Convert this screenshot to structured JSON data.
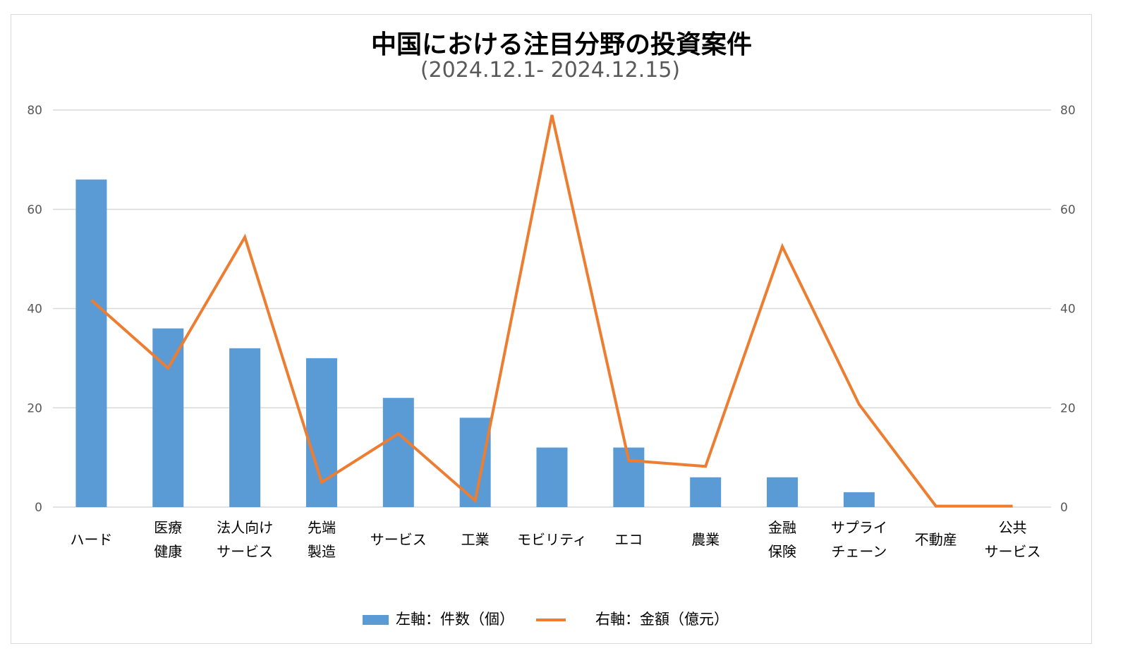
{
  "chart_data": {
    "type": "bar",
    "title": "中国における注目分野の投資案件",
    "subtitle": "(2024.12.1- 2024.12.15)",
    "categories": [
      [
        "ハード"
      ],
      [
        "医療",
        "健康"
      ],
      [
        "法人向け",
        "サービス"
      ],
      [
        "先端",
        "製造"
      ],
      [
        "サービス"
      ],
      [
        "工業"
      ],
      [
        "モビリティ"
      ],
      [
        "エコ"
      ],
      [
        "農業"
      ],
      [
        "金融",
        "保険"
      ],
      [
        "サプライ",
        "チェーン"
      ],
      [
        "不動産"
      ],
      [
        "公共",
        "サービス"
      ]
    ],
    "series": [
      {
        "name": "左軸：件数（個）",
        "type": "bar",
        "axis": "left",
        "color": "#5b9bd5",
        "values": [
          66,
          36,
          32,
          30,
          22,
          18,
          12,
          12,
          6,
          6,
          3,
          0,
          0
        ]
      },
      {
        "name": "右軸：金額（億元）",
        "type": "line",
        "axis": "right",
        "color": "#ed7d31",
        "values": [
          41.7,
          28,
          54.4,
          5,
          14.8,
          1.3,
          79,
          9.4,
          8.2,
          52.5,
          20.7,
          0.2,
          0.2
        ]
      }
    ],
    "ylim_left": [
      0,
      80
    ],
    "ylim_right": [
      0,
      80
    ],
    "yticks_left": [
      "0",
      "20",
      "40",
      "60",
      "80"
    ],
    "yticks_right": [
      "0",
      "20",
      "40",
      "60",
      "80"
    ],
    "grid": true,
    "legend_position": "bottom"
  }
}
